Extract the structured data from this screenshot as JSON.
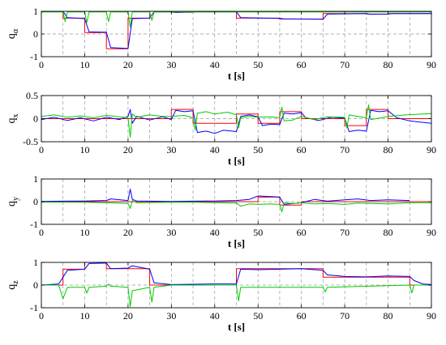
{
  "colors": {
    "reference": "#ff0000",
    "estimate": "#0000ff",
    "error": "#00cc00",
    "grid": "#999999",
    "frame": "#000000"
  },
  "chart_data": [
    {
      "type": "line",
      "ylabel": "q",
      "ylabel_sub": "α",
      "xlabel": "t [s]",
      "xlim": [
        0,
        90
      ],
      "ylim": [
        -1,
        1
      ],
      "xticks": [
        0,
        10,
        20,
        30,
        40,
        50,
        60,
        70,
        80,
        90
      ],
      "xtick_labels": [
        "0",
        "10",
        "20",
        "30",
        "40",
        "50",
        "60",
        "70",
        "80",
        "90"
      ],
      "yticks": [
        -1,
        0,
        1
      ],
      "ytick_labels": [
        "-1",
        "0",
        "1"
      ],
      "vgrid": [
        5,
        10,
        15,
        20,
        25,
        30,
        35,
        40,
        45,
        50,
        55,
        60,
        65,
        70,
        75,
        80,
        85,
        90
      ],
      "hgrid": [
        0
      ],
      "series": [
        {
          "key": "reference",
          "x": [
            0,
            5,
            5,
            10,
            10,
            15,
            15,
            20,
            20,
            25,
            25,
            30,
            30,
            35,
            35,
            45,
            45,
            55,
            55,
            65,
            65,
            75,
            75,
            80,
            80,
            90
          ],
          "y": [
            1,
            1,
            0.7,
            0.7,
            0.06,
            0.06,
            -0.65,
            -0.65,
            0.7,
            0.7,
            1,
            1,
            0.96,
            0.96,
            0.99,
            0.99,
            0.7,
            0.7,
            0.66,
            0.66,
            0.9,
            0.9,
            0.88,
            0.88,
            0.9,
            0.9
          ]
        },
        {
          "key": "estimate",
          "x": [
            0,
            5,
            6,
            10,
            11,
            15,
            16,
            20,
            21,
            25,
            26,
            30,
            31,
            35,
            36,
            45,
            46,
            55,
            56,
            65,
            66,
            75,
            76,
            80,
            81,
            90
          ],
          "y": [
            1,
            1,
            0.72,
            0.68,
            0.1,
            0.08,
            -0.6,
            -0.64,
            0.68,
            0.7,
            0.98,
            0.98,
            0.95,
            0.97,
            0.98,
            0.98,
            0.72,
            0.69,
            0.67,
            0.65,
            0.88,
            0.9,
            0.87,
            0.88,
            0.9,
            0.9
          ]
        },
        {
          "key": "error",
          "x": [
            0,
            5,
            5.5,
            6,
            10,
            10.5,
            11,
            15,
            15.5,
            16,
            20,
            20.5,
            21,
            25,
            25.5,
            26,
            30,
            90
          ],
          "y": [
            0.97,
            0.97,
            0.55,
            0.97,
            0.97,
            0.5,
            0.97,
            0.97,
            0.55,
            0.97,
            0.97,
            0.3,
            0.97,
            0.97,
            0.6,
            0.97,
            0.97,
            0.97
          ]
        }
      ]
    },
    {
      "type": "line",
      "ylabel": "q",
      "ylabel_sub": "x",
      "xlabel": "t [s]",
      "xlim": [
        0,
        90
      ],
      "ylim": [
        -0.5,
        0.5
      ],
      "xticks": [
        0,
        10,
        20,
        30,
        40,
        50,
        60,
        70,
        80,
        90
      ],
      "xtick_labels": [
        "0",
        "10",
        "20",
        "30",
        "40",
        "50",
        "60",
        "70",
        "80",
        "90"
      ],
      "yticks": [
        -0.5,
        0,
        0.5
      ],
      "ytick_labels": [
        "-0.5",
        "0",
        "0.5"
      ],
      "vgrid": [
        5,
        10,
        15,
        20,
        25,
        30,
        35,
        40,
        45,
        50,
        55,
        60,
        65,
        70,
        75,
        80,
        85,
        90
      ],
      "hgrid": [
        0
      ],
      "series": [
        {
          "key": "reference",
          "x": [
            0,
            30,
            30,
            35,
            35,
            45,
            45,
            50,
            50,
            55,
            55,
            60,
            60,
            70,
            70,
            75,
            75,
            80,
            80,
            90
          ],
          "y": [
            0,
            0,
            0.2,
            0.2,
            -0.1,
            -0.1,
            0.1,
            0.1,
            -0.1,
            -0.1,
            0.15,
            0.15,
            0,
            0,
            -0.15,
            -0.15,
            0.2,
            0.2,
            0,
            0
          ]
        },
        {
          "key": "estimate",
          "x": [
            0,
            3,
            6,
            9,
            12,
            15,
            18,
            20,
            20.5,
            21,
            22,
            25,
            28,
            30,
            31,
            33,
            35,
            36,
            38,
            40,
            42,
            45,
            46,
            48,
            50,
            51,
            53,
            55,
            56,
            58,
            60,
            61,
            64,
            67,
            70,
            71,
            73,
            75,
            76,
            78,
            80,
            82,
            85,
            88,
            90
          ],
          "y": [
            -0.02,
            0.03,
            -0.04,
            0.02,
            -0.05,
            0.03,
            -0.02,
            0.05,
            0.2,
            -0.1,
            0.05,
            -0.03,
            0.04,
            -0.02,
            0.18,
            0.15,
            0.17,
            -0.3,
            -0.27,
            -0.32,
            -0.25,
            -0.28,
            0.05,
            0.08,
            0.04,
            -0.15,
            -0.12,
            -0.13,
            0.12,
            0.1,
            0.13,
            0.02,
            -0.04,
            0.03,
            0.01,
            -0.28,
            -0.25,
            -0.27,
            0.18,
            0.15,
            0.17,
            0.02,
            -0.05,
            -0.08,
            -0.1
          ]
        },
        {
          "key": "error",
          "x": [
            0,
            3,
            6,
            9,
            12,
            15,
            18,
            20,
            20.5,
            21,
            22,
            25,
            28,
            30,
            33,
            35,
            35.5,
            36,
            38,
            40,
            43,
            45,
            45.5,
            46,
            48,
            50,
            53,
            55,
            55.5,
            56,
            58,
            60,
            63,
            66,
            70,
            70.5,
            71,
            73,
            75,
            75.5,
            76,
            78,
            80,
            84,
            88,
            90
          ],
          "y": [
            0.05,
            0.08,
            0.03,
            0.06,
            0.02,
            0.07,
            0.04,
            0.02,
            -0.4,
            0.1,
            0.03,
            0.08,
            0.05,
            0.05,
            0.07,
            0.02,
            -0.25,
            0.12,
            0.15,
            0.1,
            0.14,
            0.08,
            -0.2,
            0.02,
            0.05,
            0.03,
            0.04,
            0.02,
            0.25,
            -0.05,
            -0.03,
            0.05,
            -0.02,
            0.04,
            0.03,
            -0.2,
            0.08,
            0.05,
            0.02,
            0.3,
            -0.02,
            0.01,
            0.05,
            0.08,
            0.1,
            0.11
          ]
        }
      ]
    },
    {
      "type": "line",
      "ylabel": "q",
      "ylabel_sub": "y",
      "xlabel": "t [s]",
      "xlim": [
        0,
        90
      ],
      "ylim": [
        -1,
        1
      ],
      "xticks": [
        0,
        10,
        20,
        30,
        40,
        50,
        60,
        70,
        80,
        90
      ],
      "xtick_labels": [
        "0",
        "10",
        "20",
        "30",
        "40",
        "50",
        "60",
        "70",
        "80",
        "90"
      ],
      "yticks": [
        -1,
        0,
        1
      ],
      "ytick_labels": [
        "-1",
        "0",
        "1"
      ],
      "vgrid": [
        5,
        10,
        15,
        20,
        25,
        30,
        35,
        40,
        45,
        50,
        55,
        60,
        65,
        70,
        75,
        80,
        85,
        90
      ],
      "hgrid": [
        0
      ],
      "series": [
        {
          "key": "reference",
          "x": [
            0,
            30,
            30,
            35,
            35,
            50,
            50,
            55,
            55,
            60,
            60,
            90
          ],
          "y": [
            0,
            0,
            0,
            0,
            0,
            0,
            0.2,
            0.2,
            -0.15,
            -0.15,
            0,
            0
          ]
        },
        {
          "key": "estimate",
          "x": [
            0,
            5,
            10,
            15,
            16,
            20,
            20.5,
            21,
            22,
            25,
            30,
            35,
            40,
            45,
            48,
            50,
            53,
            55,
            56,
            60,
            63,
            66,
            70,
            73,
            76,
            80,
            85
          ],
          "y": [
            0.01,
            0.02,
            0.03,
            0.05,
            0.12,
            0.05,
            0.55,
            0.1,
            0.03,
            0.02,
            0.01,
            0.02,
            0.03,
            0.05,
            0.1,
            0.25,
            0.22,
            0.2,
            -0.12,
            -0.05,
            0.1,
            0.02,
            0.08,
            0.12,
            0.05,
            0.08,
            0.05
          ]
        },
        {
          "key": "error",
          "x": [
            0,
            5,
            10,
            15,
            20,
            20.5,
            21,
            22,
            25,
            30,
            35,
            40,
            45,
            46,
            48,
            50,
            53,
            55,
            55.5,
            56,
            58,
            60,
            63,
            66,
            70,
            73,
            76,
            80,
            85,
            90
          ],
          "y": [
            -0.02,
            -0.02,
            -0.03,
            -0.05,
            -0.08,
            -0.3,
            0.05,
            -0.05,
            -0.04,
            -0.03,
            -0.02,
            -0.05,
            -0.06,
            -0.2,
            -0.1,
            -0.12,
            -0.1,
            -0.12,
            -0.45,
            -0.05,
            -0.08,
            -0.05,
            -0.1,
            -0.08,
            -0.12,
            -0.06,
            -0.08,
            -0.1,
            -0.05,
            -0.05
          ]
        }
      ]
    },
    {
      "type": "line",
      "ylabel": "q",
      "ylabel_sub": "z",
      "xlabel": "t [s]",
      "xlim": [
        0,
        90
      ],
      "ylim": [
        -1,
        1
      ],
      "xticks": [
        0,
        10,
        20,
        30,
        40,
        50,
        60,
        70,
        80,
        90
      ],
      "xtick_labels": [
        "0",
        "10",
        "20",
        "30",
        "40",
        "50",
        "60",
        "70",
        "80",
        "90"
      ],
      "yticks": [
        -1,
        0,
        1
      ],
      "ytick_labels": [
        "-1",
        "0",
        "1"
      ],
      "vgrid": [
        5,
        10,
        15,
        20,
        25,
        30,
        35,
        40,
        45,
        50,
        55,
        60,
        65,
        70,
        75,
        80,
        85,
        90
      ],
      "hgrid": [
        0
      ],
      "series": [
        {
          "key": "reference",
          "x": [
            0,
            5,
            5,
            10,
            10,
            15,
            15,
            25,
            25,
            45,
            45,
            65,
            65,
            85,
            85,
            90
          ],
          "y": [
            0,
            0,
            0.7,
            0.7,
            1,
            1,
            0.72,
            0.72,
            0,
            0,
            0.72,
            0.72,
            0.35,
            0.35,
            0,
            0
          ]
        },
        {
          "key": "estimate",
          "x": [
            0,
            4,
            6,
            10,
            11,
            15,
            16,
            20,
            21,
            25,
            26,
            30,
            40,
            45,
            46,
            50,
            55,
            60,
            65,
            66,
            70,
            75,
            80,
            85,
            86,
            88,
            90
          ],
          "y": [
            0,
            0.05,
            0.65,
            0.7,
            0.95,
            0.97,
            0.72,
            0.75,
            0.85,
            0.7,
            0.1,
            0.02,
            0.05,
            0.05,
            0.7,
            0.68,
            0.7,
            0.72,
            0.65,
            0.45,
            0.38,
            0.36,
            0.4,
            0.38,
            0.2,
            0.05,
            0.02
          ]
        },
        {
          "key": "error",
          "x": [
            0,
            4,
            5,
            6,
            10,
            10.5,
            11,
            15,
            15.5,
            16,
            20,
            20.5,
            21,
            25,
            25.5,
            26,
            30,
            45,
            45.5,
            46,
            65,
            65.5,
            66,
            85,
            85.5,
            86,
            90
          ],
          "y": [
            0,
            0,
            -0.6,
            -0.1,
            -0.1,
            -0.35,
            -0.1,
            -0.05,
            0.05,
            -0.05,
            -0.1,
            -0.95,
            -0.25,
            -0.1,
            -0.75,
            -0.1,
            0,
            0,
            -0.7,
            -0.1,
            -0.1,
            -0.3,
            -0.1,
            0,
            -0.35,
            0,
            0
          ]
        }
      ]
    }
  ]
}
